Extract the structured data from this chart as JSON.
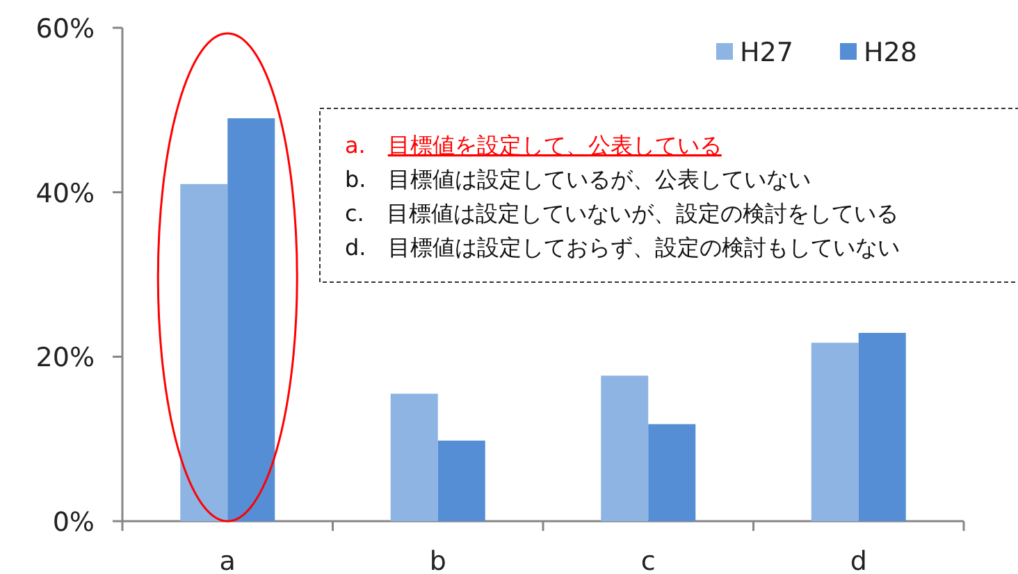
{
  "chart_data": {
    "type": "bar",
    "categories": [
      "a",
      "b",
      "c",
      "d"
    ],
    "series": [
      {
        "name": "H27",
        "color": "#8eb4e3",
        "values": [
          41,
          15.5,
          17.7,
          21.7
        ]
      },
      {
        "name": "H28",
        "color": "#558ed5",
        "values": [
          49,
          9.8,
          11.8,
          22.9
        ]
      }
    ],
    "ylim": [
      0,
      60
    ],
    "yticks": [
      {
        "value": 0,
        "label": "0%"
      },
      {
        "value": 20,
        "label": "20%"
      },
      {
        "value": 40,
        "label": "40%"
      },
      {
        "value": 60,
        "label": "60%"
      }
    ],
    "legend": "top right",
    "annotations": [
      "a.　目標値を設定して、公表している",
      "b.　目標値は設定しているが、公表していない",
      "c.　目標値は設定していないが、設定の検討をしている",
      "d.　目標値は設定しておらず、設定の検討もしていない"
    ]
  }
}
